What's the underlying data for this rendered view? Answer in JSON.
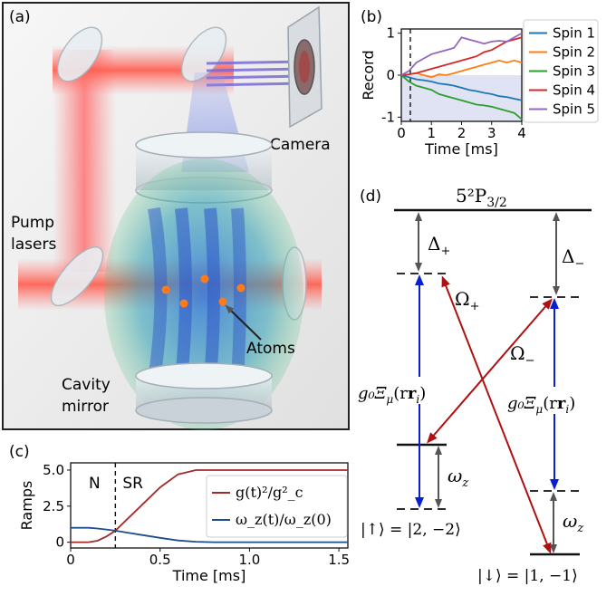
{
  "panel_a": {
    "label": "(a)",
    "camera_label": "Camera",
    "pump_label_line1": "Pump",
    "pump_label_line2": "lasers",
    "atoms_label": "Atoms",
    "cavity_label_line1": "Cavity",
    "cavity_label_line2": "mirror"
  },
  "panel_d": {
    "label": "(d)",
    "excited_state": "5²P",
    "excited_sub": "3/2",
    "delta_plus": "Δ",
    "delta_plus_sub": "+",
    "delta_minus": "Δ",
    "delta_minus_sub": "−",
    "omega_plus": "Ω",
    "omega_plus_sub": "+",
    "omega_minus": "Ω",
    "omega_minus_sub": "−",
    "coupling_left": "g₀Ξ",
    "coupling_right": "g₀Ξ",
    "coupling_sub": "μ",
    "coupling_arg": "(r",
    "coupling_arg_sub": "i",
    "coupling_close": ")",
    "omega_z": "ω",
    "omega_z_sub": "z",
    "state_up": "|↑⟩ = |2, −2⟩",
    "state_down": "|↓⟩ = |1, −1⟩"
  },
  "colors": {
    "blue_arrow": "#0a1fcf",
    "red_arrow": "#b01010",
    "gray_arrow": "#555555",
    "spin1": "#1f77b4",
    "spin2": "#ff7f0e",
    "spin3": "#2ca02c",
    "spin4": "#d62728",
    "spin5": "#9467bd",
    "ramp_g": "#a52a2a",
    "ramp_w": "#1f4e8c"
  },
  "chart_data": [
    {
      "panel": "(b)",
      "type": "line",
      "xlabel": "Time [ms]",
      "ylabel": "Record",
      "xlim": [
        0,
        4
      ],
      "ylim": [
        -1.1,
        1.1
      ],
      "xticks": [
        0,
        1,
        2,
        3,
        4
      ],
      "xtick_labels": [
        "0",
        "1",
        "2",
        "3",
        "4"
      ],
      "yticks": [
        1,
        0,
        -1
      ],
      "ytick_labels": [
        "1",
        "0",
        "-1"
      ],
      "dashed_line_x": 0.3,
      "shaded_region": "below zero",
      "legend_position": "right",
      "x": [
        0,
        0.25,
        0.5,
        0.75,
        1.0,
        1.25,
        1.5,
        1.75,
        2.0,
        2.25,
        2.5,
        2.75,
        3.0,
        3.25,
        3.5,
        3.75,
        4.0
      ],
      "series": [
        {
          "name": "Spin 1",
          "color": "#1f77b4",
          "values": [
            0,
            -0.05,
            -0.1,
            -0.12,
            -0.15,
            -0.2,
            -0.22,
            -0.25,
            -0.3,
            -0.35,
            -0.38,
            -0.42,
            -0.45,
            -0.5,
            -0.52,
            -0.56,
            -0.6
          ]
        },
        {
          "name": "Spin 2",
          "color": "#ff7f0e",
          "values": [
            0,
            0.02,
            0.05,
            0.0,
            -0.05,
            0.02,
            0.0,
            0.05,
            0.1,
            0.15,
            0.2,
            0.25,
            0.3,
            0.35,
            0.3,
            0.35,
            0.3
          ]
        },
        {
          "name": "Spin 3",
          "color": "#2ca02c",
          "values": [
            0,
            -0.15,
            -0.25,
            -0.3,
            -0.35,
            -0.45,
            -0.5,
            -0.55,
            -0.6,
            -0.65,
            -0.7,
            -0.72,
            -0.75,
            -0.8,
            -0.85,
            -0.9,
            -1.05
          ]
        },
        {
          "name": "Spin 4",
          "color": "#d62728",
          "values": [
            0,
            0.02,
            0.05,
            0.1,
            0.15,
            0.2,
            0.25,
            0.3,
            0.35,
            0.4,
            0.45,
            0.55,
            0.6,
            0.7,
            0.8,
            0.85,
            0.9
          ]
        },
        {
          "name": "Spin 5",
          "color": "#9467bd",
          "values": [
            0,
            0.1,
            0.3,
            0.4,
            0.5,
            0.55,
            0.6,
            0.65,
            0.9,
            0.85,
            0.8,
            0.75,
            0.8,
            0.82,
            0.8,
            0.9,
            1.0
          ]
        }
      ]
    },
    {
      "panel": "(c)",
      "type": "line",
      "xlabel": "Time [ms]",
      "ylabel": "Ramps",
      "xlim": [
        0,
        1.55
      ],
      "ylim": [
        -0.4,
        5.5
      ],
      "xticks": [
        0,
        0.5,
        1.0,
        1.5
      ],
      "xtick_labels": [
        "0",
        "0.5",
        "1.0",
        "1.5"
      ],
      "yticks": [
        0,
        2.5,
        5.0
      ],
      "ytick_labels": [
        "0",
        "2.5",
        "5.0"
      ],
      "dashed_line_x": 0.25,
      "regions": [
        "N",
        "SR"
      ],
      "legend_position": "right",
      "x": [
        0,
        0.1,
        0.15,
        0.2,
        0.25,
        0.3,
        0.4,
        0.5,
        0.6,
        0.7,
        0.8,
        1.0,
        1.2,
        1.4,
        1.55
      ],
      "series": [
        {
          "name": "g(t)²/g²_c",
          "color": "#a52a2a",
          "values": [
            0,
            0,
            0.1,
            0.4,
            0.8,
            1.4,
            2.6,
            3.8,
            4.7,
            5.0,
            5.0,
            5.0,
            5.0,
            5.0,
            5.0
          ]
        },
        {
          "name": "ω_z(t)/ω_z(0)",
          "color": "#1f4e8c",
          "values": [
            1.0,
            1.0,
            0.95,
            0.88,
            0.8,
            0.7,
            0.5,
            0.3,
            0.12,
            0.03,
            0.0,
            0.0,
            0.0,
            0.0,
            0.0
          ]
        }
      ]
    }
  ]
}
